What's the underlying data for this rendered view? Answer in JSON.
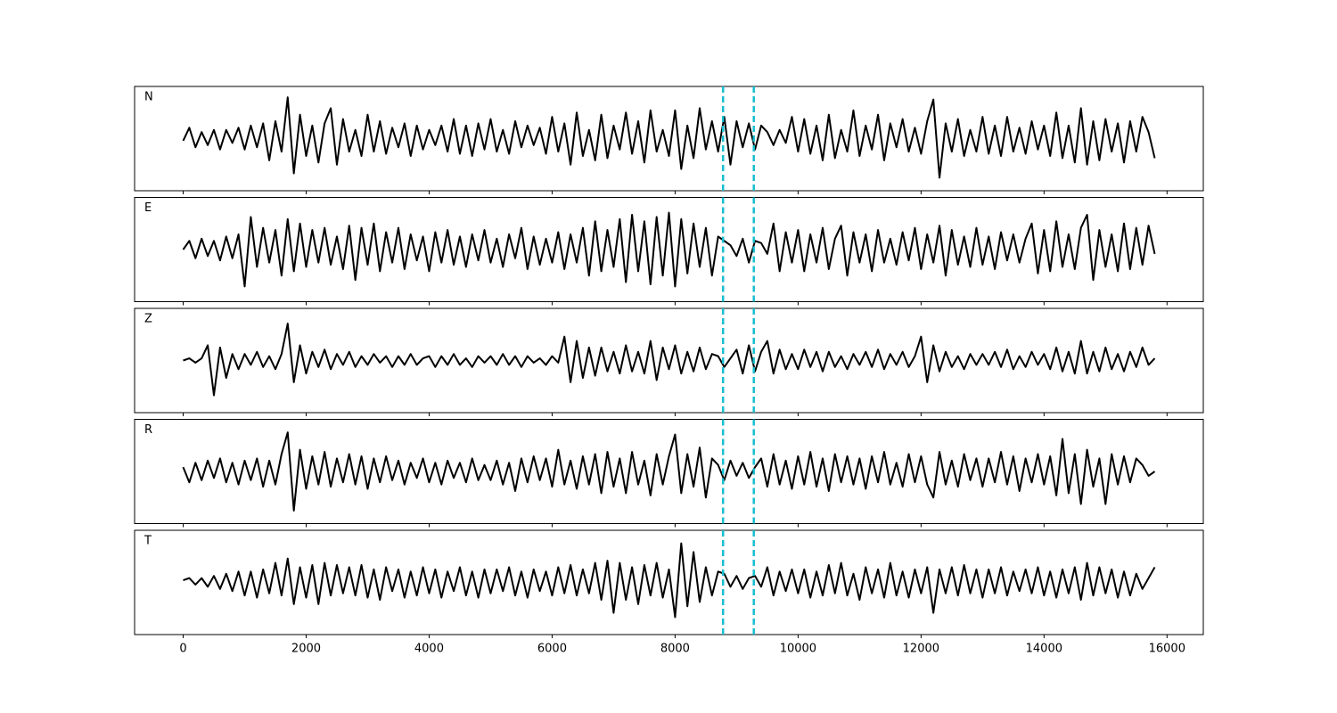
{
  "chart_data": {
    "type": "line",
    "layout": "stacked",
    "x": [
      0,
      100,
      200,
      300,
      400,
      500,
      600,
      700,
      800,
      900,
      1000,
      1100,
      1200,
      1300,
      1400,
      1500,
      1600,
      1700,
      1800,
      1900,
      2000,
      2100,
      2200,
      2300,
      2400,
      2500,
      2600,
      2700,
      2800,
      2900,
      3000,
      3100,
      3200,
      3300,
      3400,
      3500,
      3600,
      3700,
      3800,
      3900,
      4000,
      4100,
      4200,
      4300,
      4400,
      4500,
      4600,
      4700,
      4800,
      4900,
      5000,
      5100,
      5200,
      5300,
      5400,
      5500,
      5600,
      5700,
      5800,
      5900,
      6000,
      6100,
      6200,
      6300,
      6400,
      6500,
      6600,
      6700,
      6800,
      6900,
      7000,
      7100,
      7200,
      7300,
      7400,
      7500,
      7600,
      7700,
      7800,
      7900,
      8000,
      8100,
      8200,
      8300,
      8400,
      8500,
      8600,
      8700,
      8800,
      8900,
      9000,
      9100,
      9200,
      9300,
      9400,
      9500,
      9600,
      9700,
      9800,
      9900,
      10000,
      10100,
      10200,
      10300,
      10400,
      10500,
      10600,
      10700,
      10800,
      10900,
      11000,
      11100,
      11200,
      11300,
      11400,
      11500,
      11600,
      11700,
      11800,
      11900,
      12000,
      12100,
      12200,
      12300,
      12400,
      12500,
      12600,
      12700,
      12800,
      12900,
      13000,
      13100,
      13200,
      13300,
      13400,
      13500,
      13600,
      13700,
      13800,
      13900,
      14000,
      14100,
      14200,
      14300,
      14400,
      14500,
      14600,
      14700,
      14800,
      14900,
      15000,
      15100,
      15200,
      15300,
      15400,
      15500,
      15600,
      15700,
      15800
    ],
    "series": [
      {
        "name": "N",
        "color": "#000000",
        "values": [
          -0.05,
          0.25,
          -0.2,
          0.15,
          -0.15,
          0.2,
          -0.25,
          0.2,
          -0.1,
          0.25,
          -0.25,
          0.3,
          -0.2,
          0.35,
          -0.5,
          0.4,
          -0.3,
          0.95,
          -0.8,
          0.55,
          -0.4,
          0.3,
          -0.55,
          0.35,
          0.7,
          -0.6,
          0.45,
          -0.3,
          0.2,
          -0.4,
          0.55,
          -0.3,
          0.4,
          -0.35,
          0.25,
          -0.2,
          0.35,
          -0.4,
          0.3,
          -0.25,
          0.2,
          -0.15,
          0.3,
          -0.3,
          0.45,
          -0.35,
          0.3,
          -0.4,
          0.35,
          -0.25,
          0.45,
          -0.3,
          0.2,
          -0.35,
          0.4,
          -0.2,
          0.3,
          -0.15,
          0.25,
          -0.35,
          0.5,
          -0.3,
          0.35,
          -0.6,
          0.6,
          -0.4,
          0.2,
          -0.5,
          0.55,
          -0.45,
          0.3,
          -0.25,
          0.6,
          -0.35,
          0.4,
          -0.55,
          0.65,
          -0.3,
          0.2,
          -0.4,
          0.65,
          -0.7,
          0.3,
          -0.45,
          0.7,
          -0.25,
          0.4,
          -0.3,
          0.5,
          -0.6,
          0.4,
          -0.2,
          0.35,
          -0.25,
          0.3,
          0.15,
          -0.15,
          0.2,
          -0.1,
          0.5,
          -0.3,
          0.45,
          -0.35,
          0.3,
          -0.5,
          0.55,
          -0.45,
          0.2,
          -0.3,
          0.65,
          -0.4,
          0.3,
          -0.25,
          0.55,
          -0.5,
          0.35,
          -0.2,
          0.45,
          -0.3,
          0.25,
          -0.35,
          0.4,
          0.9,
          -0.9,
          0.35,
          -0.3,
          0.45,
          -0.4,
          0.2,
          -0.3,
          0.5,
          -0.35,
          0.3,
          -0.4,
          0.5,
          -0.3,
          0.25,
          -0.35,
          0.4,
          -0.25,
          0.3,
          -0.4,
          0.6,
          -0.45,
          0.3,
          -0.55,
          0.7,
          -0.6,
          0.4,
          -0.5,
          0.45,
          -0.3,
          0.35,
          -0.55,
          0.4,
          -0.3,
          0.5,
          0.15,
          -0.45
        ]
      },
      {
        "name": "E",
        "color": "#000000",
        "values": [
          0.0,
          0.2,
          -0.2,
          0.25,
          -0.15,
          0.2,
          -0.25,
          0.3,
          -0.2,
          0.35,
          -0.85,
          0.75,
          -0.4,
          0.5,
          -0.3,
          0.45,
          -0.6,
          0.7,
          -0.5,
          0.6,
          -0.4,
          0.45,
          -0.3,
          0.5,
          -0.35,
          0.3,
          -0.45,
          0.55,
          -0.7,
          0.5,
          -0.35,
          0.6,
          -0.5,
          0.4,
          -0.3,
          0.5,
          -0.45,
          0.35,
          -0.25,
          0.3,
          -0.5,
          0.4,
          -0.3,
          0.45,
          -0.35,
          0.3,
          -0.4,
          0.35,
          -0.25,
          0.45,
          -0.3,
          0.25,
          -0.4,
          0.35,
          -0.2,
          0.5,
          -0.45,
          0.3,
          -0.35,
          0.25,
          -0.3,
          0.4,
          -0.45,
          0.35,
          -0.3,
          0.5,
          -0.6,
          0.65,
          -0.5,
          0.45,
          -0.4,
          0.7,
          -0.75,
          0.8,
          -0.5,
          0.65,
          -0.8,
          0.75,
          -0.6,
          0.85,
          -0.85,
          0.7,
          -0.55,
          0.6,
          -0.4,
          0.5,
          -0.6,
          0.3,
          0.2,
          0.1,
          -0.15,
          0.25,
          -0.3,
          0.2,
          0.15,
          -0.1,
          0.6,
          -0.5,
          0.4,
          -0.3,
          0.45,
          -0.5,
          0.35,
          -0.3,
          0.5,
          -0.45,
          0.25,
          0.55,
          -0.6,
          0.4,
          -0.3,
          0.35,
          -0.5,
          0.45,
          -0.3,
          0.25,
          -0.35,
          0.4,
          -0.25,
          0.5,
          -0.45,
          0.35,
          -0.3,
          0.55,
          -0.6,
          0.45,
          -0.35,
          0.3,
          -0.4,
          0.5,
          -0.35,
          0.3,
          -0.45,
          0.4,
          -0.25,
          0.35,
          -0.3,
          0.25,
          0.6,
          -0.55,
          0.45,
          -0.5,
          0.65,
          -0.4,
          0.35,
          -0.45,
          0.5,
          0.8,
          -0.7,
          0.45,
          -0.4,
          0.35,
          -0.5,
          0.6,
          -0.45,
          0.5,
          -0.35,
          0.55,
          -0.1
        ]
      },
      {
        "name": "Z",
        "color": "#000000",
        "values": [
          0.0,
          0.05,
          -0.05,
          0.05,
          0.35,
          -0.8,
          0.3,
          -0.4,
          0.15,
          -0.2,
          0.15,
          -0.1,
          0.2,
          -0.15,
          0.1,
          -0.2,
          0.15,
          0.85,
          -0.5,
          0.35,
          -0.3,
          0.2,
          -0.15,
          0.25,
          -0.2,
          0.15,
          -0.1,
          0.2,
          -0.15,
          0.1,
          -0.1,
          0.15,
          -0.05,
          0.1,
          -0.15,
          0.1,
          -0.1,
          0.15,
          -0.1,
          0.05,
          0.1,
          -0.15,
          0.1,
          -0.1,
          0.15,
          -0.1,
          0.05,
          -0.15,
          0.1,
          -0.05,
          0.1,
          -0.1,
          0.15,
          -0.1,
          0.1,
          -0.15,
          0.1,
          -0.05,
          0.05,
          -0.1,
          0.1,
          -0.05,
          0.55,
          -0.5,
          0.45,
          -0.4,
          0.3,
          -0.35,
          0.3,
          -0.25,
          0.2,
          -0.3,
          0.35,
          -0.25,
          0.2,
          -0.3,
          0.45,
          -0.45,
          0.3,
          -0.2,
          0.35,
          -0.3,
          0.2,
          -0.25,
          0.3,
          -0.2,
          0.15,
          0.1,
          -0.15,
          0.05,
          0.25,
          -0.3,
          0.35,
          -0.25,
          0.2,
          0.45,
          -0.3,
          0.25,
          -0.2,
          0.15,
          -0.2,
          0.25,
          -0.15,
          0.2,
          -0.25,
          0.2,
          -0.15,
          0.1,
          -0.2,
          0.15,
          -0.1,
          0.2,
          -0.15,
          0.25,
          -0.2,
          0.15,
          -0.1,
          0.2,
          -0.15,
          0.1,
          0.55,
          -0.5,
          0.35,
          -0.25,
          0.2,
          -0.15,
          0.1,
          -0.2,
          0.15,
          -0.1,
          0.15,
          -0.1,
          0.2,
          -0.15,
          0.25,
          -0.2,
          0.1,
          -0.15,
          0.2,
          -0.1,
          0.15,
          -0.2,
          0.3,
          -0.25,
          0.2,
          -0.3,
          0.45,
          -0.3,
          0.2,
          -0.25,
          0.3,
          -0.2,
          0.15,
          -0.25,
          0.2,
          -0.15,
          0.3,
          -0.1,
          0.05
        ]
      },
      {
        "name": "R",
        "color": "#000000",
        "values": [
          0.1,
          -0.25,
          0.2,
          -0.2,
          0.25,
          -0.15,
          0.3,
          -0.25,
          0.2,
          -0.3,
          0.25,
          -0.2,
          0.3,
          -0.35,
          0.25,
          -0.3,
          0.4,
          0.9,
          -0.9,
          0.5,
          -0.4,
          0.35,
          -0.3,
          0.45,
          -0.35,
          0.3,
          -0.25,
          0.4,
          -0.3,
          0.35,
          -0.4,
          0.3,
          -0.25,
          0.35,
          -0.2,
          0.25,
          -0.3,
          0.2,
          -0.15,
          0.3,
          -0.25,
          0.2,
          -0.3,
          0.25,
          -0.15,
          0.2,
          -0.25,
          0.3,
          -0.2,
          0.15,
          -0.2,
          0.25,
          -0.3,
          0.2,
          -0.45,
          0.3,
          -0.25,
          0.35,
          -0.2,
          0.3,
          -0.35,
          0.5,
          -0.3,
          0.25,
          -0.4,
          0.35,
          -0.3,
          0.4,
          -0.5,
          0.45,
          -0.35,
          0.3,
          -0.5,
          0.45,
          -0.3,
          0.25,
          -0.55,
          0.4,
          -0.3,
          0.35,
          0.85,
          -0.5,
          0.4,
          -0.35,
          0.55,
          -0.6,
          0.3,
          0.15,
          -0.2,
          0.25,
          -0.1,
          0.2,
          -0.15,
          0.1,
          0.3,
          -0.35,
          0.4,
          -0.3,
          0.25,
          -0.4,
          0.35,
          -0.3,
          0.45,
          -0.35,
          0.3,
          -0.45,
          0.4,
          -0.25,
          0.35,
          -0.3,
          0.3,
          -0.4,
          0.35,
          -0.25,
          0.45,
          -0.3,
          0.2,
          -0.35,
          0.4,
          -0.25,
          0.35,
          -0.3,
          -0.6,
          0.45,
          -0.3,
          0.25,
          -0.35,
          0.4,
          -0.2,
          0.3,
          -0.35,
          0.3,
          -0.25,
          0.45,
          -0.3,
          0.35,
          -0.45,
          0.3,
          -0.25,
          0.4,
          -0.3,
          0.35,
          -0.55,
          0.75,
          -0.5,
          0.4,
          -0.75,
          0.5,
          -0.35,
          0.3,
          -0.75,
          0.4,
          -0.3,
          0.35,
          -0.25,
          0.3,
          0.15,
          -0.1,
          0.0
        ]
      },
      {
        "name": "T",
        "color": "#000000",
        "values": [
          0.05,
          0.1,
          -0.05,
          0.1,
          -0.1,
          0.15,
          -0.15,
          0.2,
          -0.2,
          0.25,
          -0.3,
          0.25,
          -0.35,
          0.3,
          -0.25,
          0.45,
          -0.3,
          0.55,
          -0.5,
          0.35,
          -0.35,
          0.4,
          -0.5,
          0.45,
          -0.3,
          0.4,
          -0.25,
          0.35,
          -0.3,
          0.4,
          -0.35,
          0.3,
          -0.4,
          0.35,
          -0.2,
          0.3,
          -0.35,
          0.25,
          -0.3,
          0.35,
          -0.25,
          0.3,
          -0.35,
          0.25,
          -0.2,
          0.35,
          -0.3,
          0.25,
          -0.35,
          0.3,
          -0.25,
          0.3,
          -0.2,
          0.35,
          -0.3,
          0.25,
          -0.35,
          0.3,
          -0.2,
          0.25,
          -0.3,
          0.35,
          -0.25,
          0.4,
          -0.3,
          0.3,
          -0.25,
          0.45,
          -0.4,
          0.5,
          -0.7,
          0.45,
          -0.4,
          0.35,
          -0.5,
          0.4,
          -0.3,
          0.45,
          -0.35,
          0.3,
          -0.8,
          0.9,
          -0.55,
          0.7,
          -0.45,
          0.35,
          -0.3,
          0.25,
          0.2,
          -0.1,
          0.15,
          -0.15,
          0.1,
          0.15,
          -0.1,
          0.35,
          -0.3,
          0.25,
          -0.2,
          0.3,
          -0.25,
          0.3,
          -0.35,
          0.25,
          -0.3,
          0.4,
          -0.25,
          0.45,
          -0.3,
          0.2,
          -0.4,
          0.35,
          -0.25,
          0.3,
          -0.35,
          0.45,
          -0.3,
          0.25,
          -0.35,
          0.3,
          -0.25,
          0.35,
          -0.7,
          0.3,
          -0.25,
          0.35,
          -0.3,
          0.4,
          -0.25,
          0.3,
          -0.35,
          0.3,
          -0.25,
          0.35,
          -0.3,
          0.25,
          -0.2,
          0.3,
          -0.25,
          0.35,
          -0.3,
          0.25,
          -0.35,
          0.3,
          -0.25,
          0.35,
          -0.4,
          0.45,
          -0.3,
          0.35,
          -0.25,
          0.3,
          -0.35,
          0.25,
          -0.3,
          0.2,
          -0.15,
          0.1,
          0.35
        ]
      }
    ],
    "xlim": [
      -790,
      16590
    ],
    "xticks": [
      0,
      2000,
      4000,
      6000,
      8000,
      10000,
      12000,
      14000,
      16000
    ],
    "ylim": [
      -1.2,
      1.2
    ],
    "vlines": [
      8780,
      9280
    ],
    "vline_color": "#17becf"
  }
}
